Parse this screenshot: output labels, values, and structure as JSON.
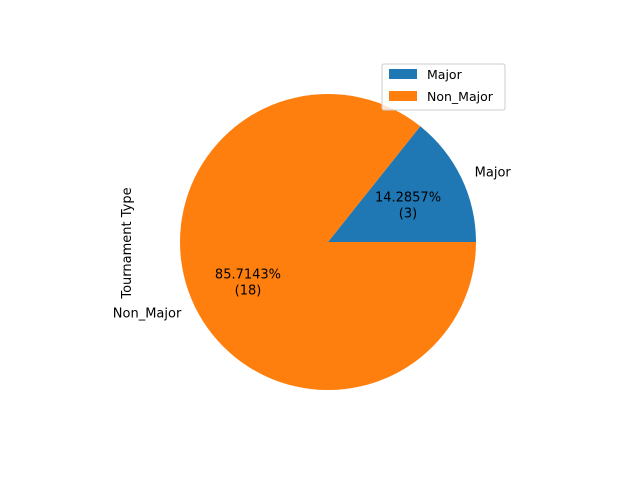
{
  "chart_data": {
    "type": "pie",
    "ylabel": "Tournament Type",
    "categories": [
      "Major",
      "Non_Major"
    ],
    "values": [
      3,
      18
    ],
    "percent_labels": [
      "14.2857%",
      "85.7143%"
    ],
    "count_labels": [
      "(3)",
      "(18)"
    ],
    "colors": [
      "#1f77b4",
      "#ff7f0e"
    ],
    "start_angle_deg": 0,
    "direction": "counterclockwise",
    "legend": {
      "placement": "top-right",
      "entries": [
        "Major",
        "Non_Major"
      ]
    }
  }
}
